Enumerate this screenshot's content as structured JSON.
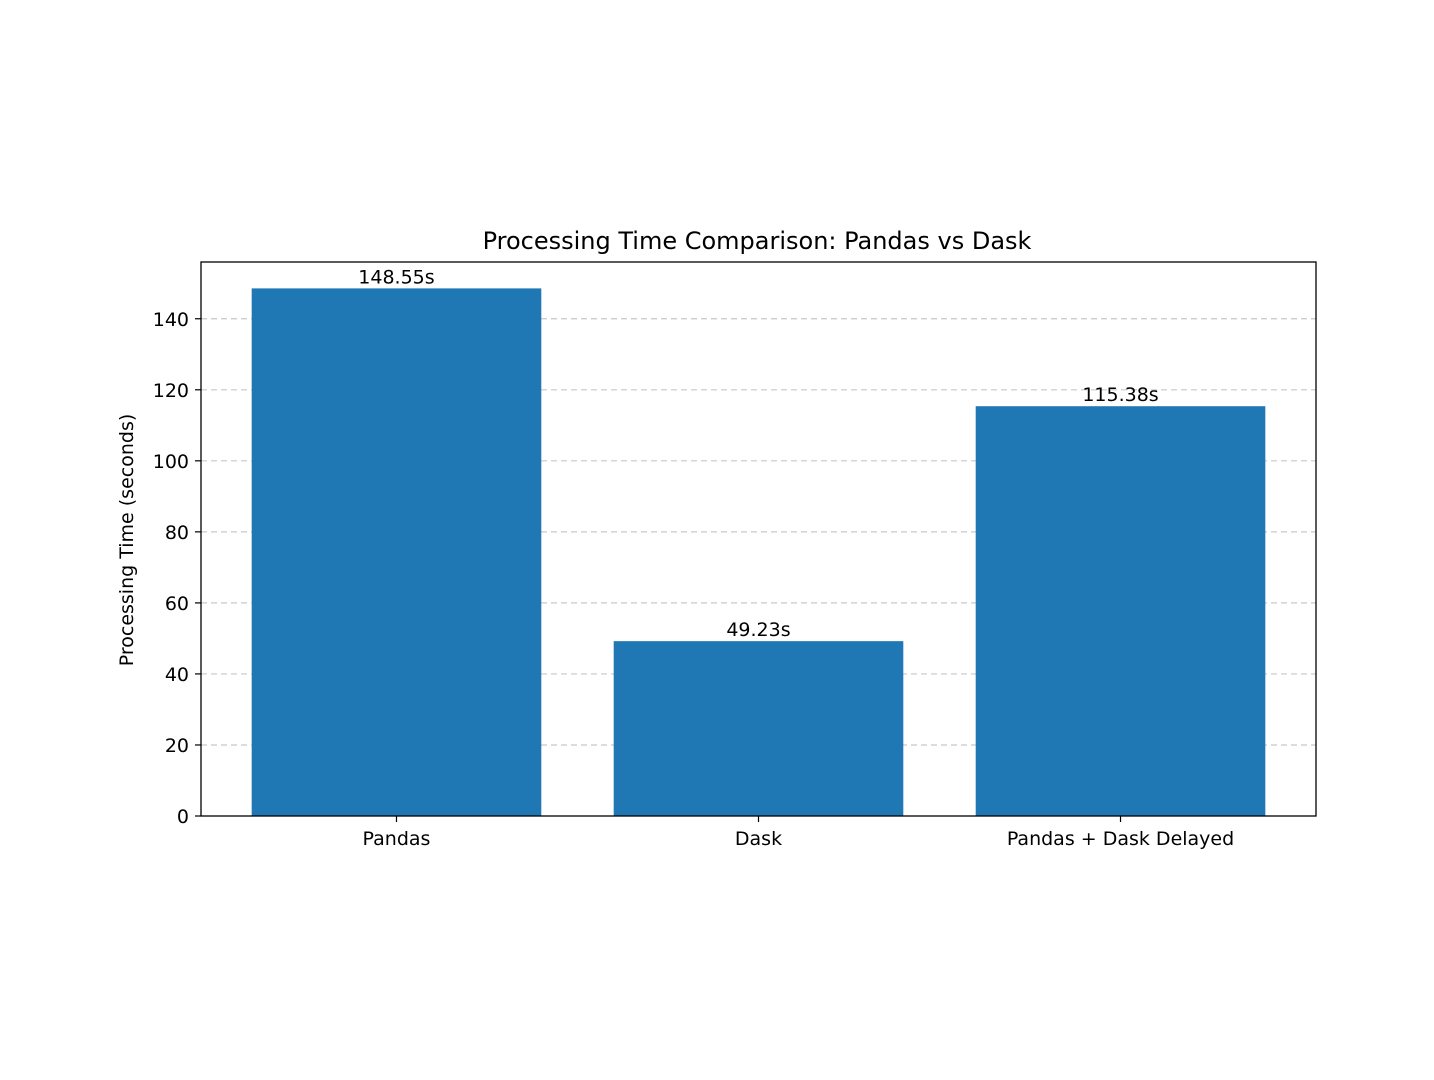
{
  "colors": {
    "bar": "#1f77b4",
    "grid": "#c8c8c8",
    "axis": "#000000",
    "background": "#ffffff"
  },
  "chart_data": {
    "type": "bar",
    "title": "Processing Time Comparison: Pandas vs Dask",
    "xlabel": "",
    "ylabel": "Processing Time (seconds)",
    "categories": [
      "Pandas",
      "Dask",
      "Pandas + Dask Delayed"
    ],
    "values": [
      148.55,
      49.23,
      115.38
    ],
    "data_labels": [
      "148.55s",
      "49.23s",
      "115.38s"
    ],
    "ylim": [
      0,
      155.98
    ],
    "yticks": [
      0,
      20,
      40,
      60,
      80,
      100,
      120,
      140
    ],
    "grid": {
      "axis": "y",
      "style": "dashed"
    },
    "legend": "none"
  }
}
